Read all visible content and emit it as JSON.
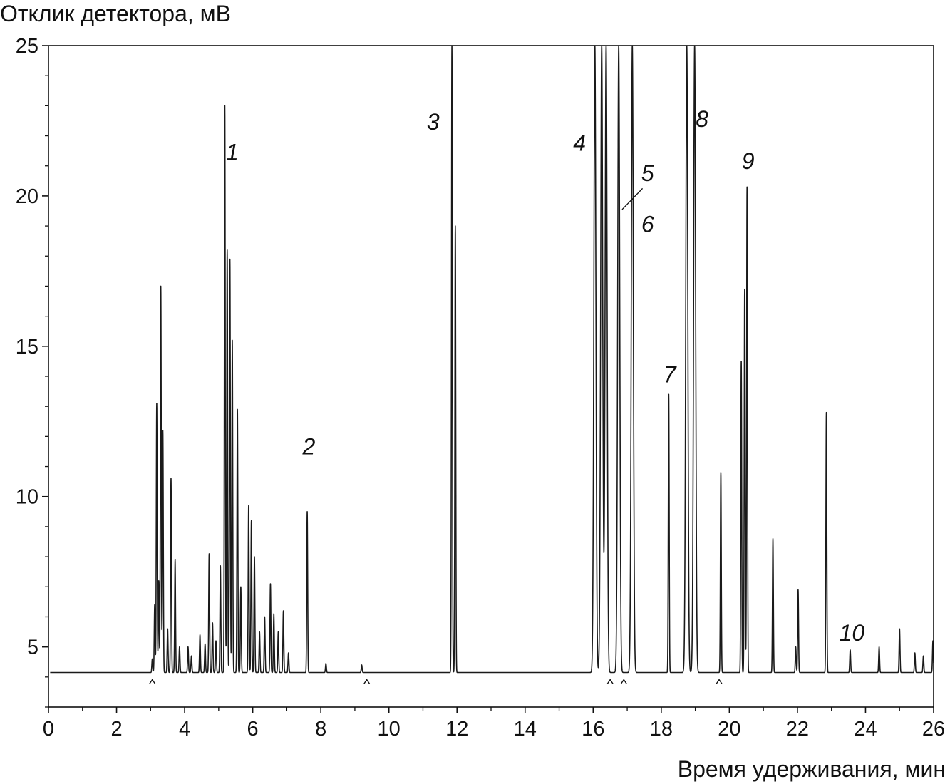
{
  "chart_data": {
    "type": "line",
    "title": "",
    "ylabel": "Отклик детектора, мВ",
    "xlabel": "Время удерживания, мин",
    "xlim": [
      0,
      26
    ],
    "ylim": [
      3,
      25
    ],
    "x_ticks": [
      "0",
      "2",
      "4",
      "6",
      "8",
      "10",
      "12",
      "14",
      "16",
      "18",
      "20",
      "22",
      "24",
      "26"
    ],
    "y_ticks": [
      "5",
      "10",
      "15",
      "20",
      "25"
    ],
    "baseline": 4.15,
    "grid": false,
    "series": [
      {
        "peaks": [
          {
            "t": 3.05,
            "h": 4.6
          },
          {
            "t": 3.12,
            "h": 6.4
          },
          {
            "t": 3.18,
            "h": 13.1
          },
          {
            "t": 3.24,
            "h": 7.2
          },
          {
            "t": 3.3,
            "h": 17.0
          },
          {
            "t": 3.36,
            "h": 12.2
          },
          {
            "t": 3.5,
            "h": 5.6
          },
          {
            "t": 3.6,
            "h": 10.6
          },
          {
            "t": 3.72,
            "h": 7.9
          },
          {
            "t": 3.85,
            "h": 5.0
          },
          {
            "t": 4.1,
            "h": 5.0
          },
          {
            "t": 4.2,
            "h": 4.7
          },
          {
            "t": 4.45,
            "h": 5.4
          },
          {
            "t": 4.6,
            "h": 5.1
          },
          {
            "t": 4.72,
            "h": 8.1
          },
          {
            "t": 4.82,
            "h": 5.8
          },
          {
            "t": 4.92,
            "h": 5.2
          },
          {
            "t": 5.05,
            "h": 7.7
          },
          {
            "t": 5.18,
            "h": 23.0
          },
          {
            "t": 5.25,
            "h": 18.2
          },
          {
            "t": 5.33,
            "h": 17.9
          },
          {
            "t": 5.4,
            "h": 15.2
          },
          {
            "t": 5.55,
            "h": 12.9
          },
          {
            "t": 5.65,
            "h": 7.0
          },
          {
            "t": 5.88,
            "h": 9.7
          },
          {
            "t": 5.96,
            "h": 9.2
          },
          {
            "t": 6.05,
            "h": 8.0
          },
          {
            "t": 6.2,
            "h": 5.5
          },
          {
            "t": 6.35,
            "h": 6.0
          },
          {
            "t": 6.52,
            "h": 7.1
          },
          {
            "t": 6.62,
            "h": 6.1
          },
          {
            "t": 6.75,
            "h": 5.5
          },
          {
            "t": 6.9,
            "h": 6.2
          },
          {
            "t": 7.05,
            "h": 4.8
          },
          {
            "t": 7.6,
            "h": 9.5
          },
          {
            "t": 8.15,
            "h": 4.45
          },
          {
            "t": 9.2,
            "h": 4.4
          },
          {
            "t": 11.85,
            "h": 25.0
          },
          {
            "t": 11.95,
            "h": 19.0
          },
          {
            "t": 16.05,
            "h": 25.0
          },
          {
            "t": 16.25,
            "h": 25.0
          },
          {
            "t": 16.38,
            "h": 25.0
          },
          {
            "t": 16.75,
            "h": 25.0
          },
          {
            "t": 17.15,
            "h": 25.0
          },
          {
            "t": 18.22,
            "h": 13.4
          },
          {
            "t": 18.75,
            "h": 25.0
          },
          {
            "t": 18.98,
            "h": 25.0
          },
          {
            "t": 19.75,
            "h": 10.8
          },
          {
            "t": 20.35,
            "h": 14.5
          },
          {
            "t": 20.45,
            "h": 16.9
          },
          {
            "t": 20.52,
            "h": 20.3
          },
          {
            "t": 21.28,
            "h": 8.6
          },
          {
            "t": 21.95,
            "h": 5.0
          },
          {
            "t": 22.02,
            "h": 6.9
          },
          {
            "t": 22.85,
            "h": 12.8
          },
          {
            "t": 23.55,
            "h": 4.9
          },
          {
            "t": 24.4,
            "h": 5.0
          },
          {
            "t": 25.0,
            "h": 5.6
          },
          {
            "t": 25.45,
            "h": 4.8
          },
          {
            "t": 25.7,
            "h": 4.7
          },
          {
            "t": 25.98,
            "h": 5.2
          }
        ]
      }
    ],
    "annotations": [
      {
        "text": "1",
        "x": 5.4,
        "y": 21.2,
        "italic": true
      },
      {
        "text": "2",
        "x": 7.65,
        "y": 11.4,
        "italic": true
      },
      {
        "text": "3",
        "x": 11.3,
        "y": 22.2,
        "italic": true
      },
      {
        "text": "4",
        "x": 15.6,
        "y": 21.5,
        "italic": true
      },
      {
        "text": "5",
        "x": 17.6,
        "y": 20.5,
        "italic": true
      },
      {
        "text": "6",
        "x": 17.6,
        "y": 18.8,
        "italic": true
      },
      {
        "text": "7",
        "x": 18.25,
        "y": 13.8,
        "italic": true
      },
      {
        "text": "8",
        "x": 19.2,
        "y": 22.3,
        "italic": true
      },
      {
        "text": "9",
        "x": 20.55,
        "y": 20.9,
        "italic": true
      },
      {
        "text": "10",
        "x": 23.6,
        "y": 5.2,
        "italic": true
      }
    ],
    "integration_marks_x": [
      3.05,
      9.35,
      16.5,
      16.9,
      19.7
    ]
  }
}
